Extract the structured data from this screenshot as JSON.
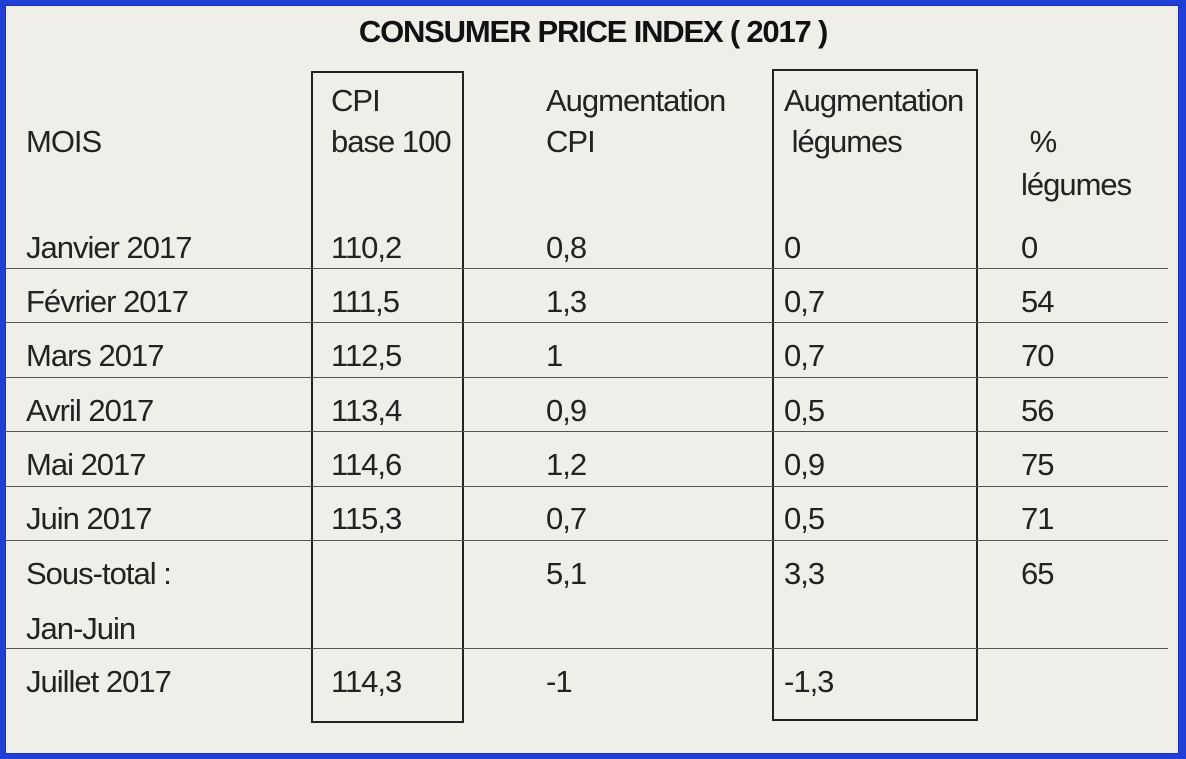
{
  "chart_data": {
    "type": "table",
    "title": "CONSUMER PRICE INDEX ( 2017 )",
    "columns": [
      {
        "lines": [
          "MOIS"
        ]
      },
      {
        "lines": [
          "CPI",
          "base 100"
        ]
      },
      {
        "lines": [
          "Augmentation",
          "CPI"
        ]
      },
      {
        "lines": [
          "Augmentation",
          " légumes"
        ]
      },
      {
        "lines": [
          " %",
          "légumes"
        ]
      }
    ],
    "rows": [
      {
        "mois": "Janvier 2017",
        "cpi": "110,2",
        "aug_cpi": "0,8",
        "aug_leg": "0",
        "pct_leg": "0"
      },
      {
        "mois": "Février 2017",
        "cpi": "111,5",
        "aug_cpi": "1,3",
        "aug_leg": "0,7",
        "pct_leg": "54"
      },
      {
        "mois": "Mars 2017",
        "cpi": "112,5",
        "aug_cpi": "1",
        "aug_leg": "0,7",
        "pct_leg": "70"
      },
      {
        "mois": "Avril 2017",
        "cpi": "113,4",
        "aug_cpi": "0,9",
        "aug_leg": "0,5",
        "pct_leg": "56"
      },
      {
        "mois": "Mai 2017",
        "cpi": "114,6",
        "aug_cpi": "1,2",
        "aug_leg": "0,9",
        "pct_leg": "75"
      },
      {
        "mois": "Juin 2017",
        "cpi": "115,3",
        "aug_cpi": "0,7",
        "aug_leg": "0,5",
        "pct_leg": "71"
      }
    ],
    "subtotal": {
      "mois_line1": "Sous-total :",
      "mois_line2": "Jan-Juin",
      "cpi": "",
      "aug_cpi": "5,1",
      "aug_leg": "3,3",
      "pct_leg": "65"
    },
    "last_row": {
      "mois": "Juillet 2017",
      "cpi": "114,3",
      "aug_cpi": "-1",
      "aug_leg": "-1,3",
      "pct_leg": ""
    }
  }
}
